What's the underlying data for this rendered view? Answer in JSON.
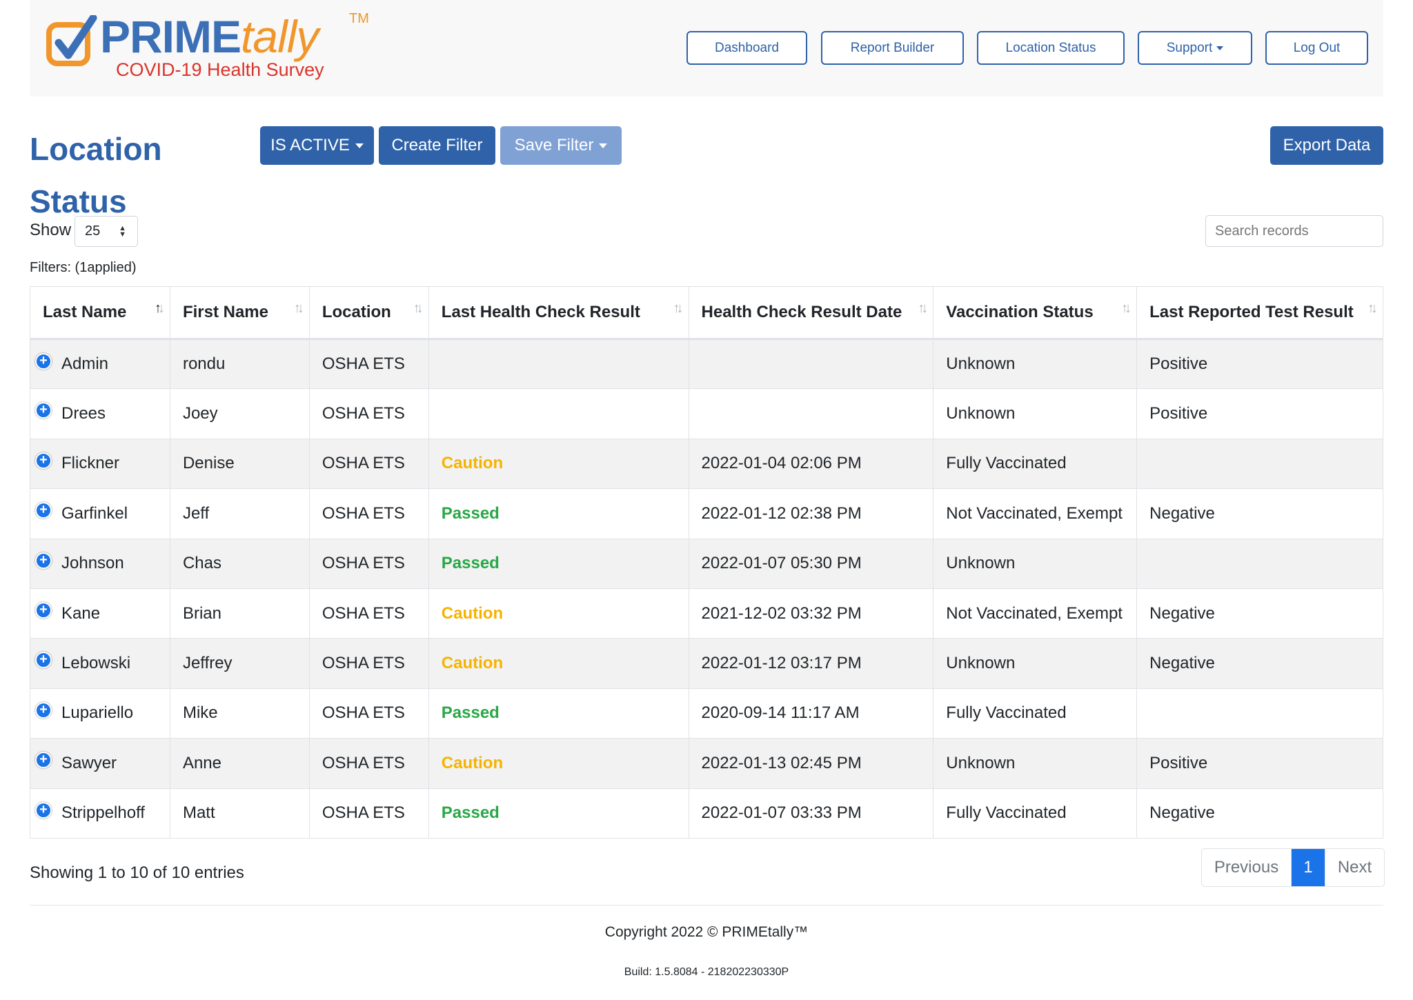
{
  "logo": {
    "brand_prime": "PRIME",
    "brand_tally": "tally",
    "tm": "TM",
    "subtitle": "COVID-19 Health Survey"
  },
  "nav": {
    "dashboard": "Dashboard",
    "report_builder": "Report Builder",
    "location_status": "Location Status",
    "support": "Support",
    "log_out": "Log Out"
  },
  "page": {
    "title_line1": "Location",
    "title_line2": "Status",
    "is_active_label": "IS ACTIVE",
    "create_filter_label": "Create Filter",
    "save_filter_label": "Save Filter",
    "export_label": "Export Data",
    "show_label": "Show",
    "show_value": "25",
    "search_placeholder": "Search records",
    "filters_text": "Filters: (1applied)"
  },
  "table": {
    "columns": [
      "Last Name",
      "First Name",
      "Location",
      "Last Health Check Result",
      "Health Check Result Date",
      "Vaccination Status",
      "Last Reported Test Result"
    ],
    "rows": [
      [
        "Admin",
        "rondu",
        "OSHA ETS",
        "",
        "",
        "Unknown",
        "Positive"
      ],
      [
        "Drees",
        "Joey",
        "OSHA ETS",
        "",
        "",
        "Unknown",
        "Positive"
      ],
      [
        "Flickner",
        "Denise",
        "OSHA ETS",
        "Caution",
        "2022-01-04 02:06 PM",
        "Fully Vaccinated",
        ""
      ],
      [
        "Garfinkel",
        "Jeff",
        "OSHA ETS",
        "Passed",
        "2022-01-12 02:38 PM",
        "Not Vaccinated, Exempt",
        "Negative"
      ],
      [
        "Johnson",
        "Chas",
        "OSHA ETS",
        "Passed",
        "2022-01-07 05:30 PM",
        "Unknown",
        ""
      ],
      [
        "Kane",
        "Brian",
        "OSHA ETS",
        "Caution",
        "2021-12-02 03:32 PM",
        "Not Vaccinated, Exempt",
        "Negative"
      ],
      [
        "Lebowski",
        "Jeffrey",
        "OSHA ETS",
        "Caution",
        "2022-01-12 03:17 PM",
        "Unknown",
        "Negative"
      ],
      [
        "Lupariello",
        "Mike",
        "OSHA ETS",
        "Passed",
        "2020-09-14 11:17 AM",
        "Fully Vaccinated",
        ""
      ],
      [
        "Sawyer",
        "Anne",
        "OSHA ETS",
        "Caution",
        "2022-01-13 02:45 PM",
        "Unknown",
        "Positive"
      ],
      [
        "Strippelhoff",
        "Matt",
        "OSHA ETS",
        "Passed",
        "2022-01-07 03:33 PM",
        "Fully Vaccinated",
        "Negative"
      ]
    ]
  },
  "pagination": {
    "showing": "Showing 1 to 10 of 10 entries",
    "previous": "Previous",
    "current": "1",
    "next": "Next"
  },
  "footer": {
    "copyright": "Copyright 2022 © PRIMEtally™",
    "build": "Build: 1.5.8084 - 218202230330P"
  },
  "colors": {
    "brand_blue": "#2f62a8",
    "brand_orange": "#f0962a",
    "subtitle_red": "#d9342b",
    "caution": "#f5b301",
    "passed": "#28a745",
    "page_active": "#1a73e8"
  }
}
